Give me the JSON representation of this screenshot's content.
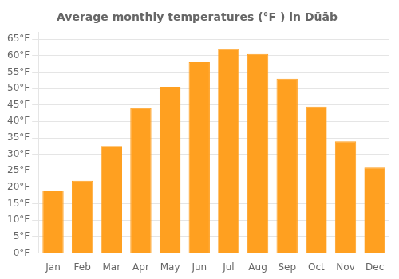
{
  "chart_data": {
    "type": "bar",
    "title": "Average monthly temperatures (°F ) in Dūāb",
    "categories": [
      "Jan",
      "Feb",
      "Mar",
      "Apr",
      "May",
      "Jun",
      "Jul",
      "Aug",
      "Sep",
      "Oct",
      "Nov",
      "Dec"
    ],
    "values": [
      19,
      22,
      32.5,
      44,
      50.5,
      58,
      62,
      60.5,
      53,
      44.5,
      34,
      26
    ],
    "color": "#FFA020",
    "ylim": [
      0,
      67
    ],
    "yticks": [
      {
        "value": 0,
        "label": "0°F"
      },
      {
        "value": 5,
        "label": "5°F"
      },
      {
        "value": 10,
        "label": "10°F"
      },
      {
        "value": 15,
        "label": "15°F"
      },
      {
        "value": 20,
        "label": "20°F"
      },
      {
        "value": 25,
        "label": "25°F"
      },
      {
        "value": 30,
        "label": "30°F"
      },
      {
        "value": 35,
        "label": "35°F"
      },
      {
        "value": 40,
        "label": "40°F"
      },
      {
        "value": 45,
        "label": "45°F"
      },
      {
        "value": 50,
        "label": "50°F"
      },
      {
        "value": 55,
        "label": "55°F"
      },
      {
        "value": 60,
        "label": "60°F"
      },
      {
        "value": 65,
        "label": "65°F"
      }
    ],
    "grid": true
  }
}
